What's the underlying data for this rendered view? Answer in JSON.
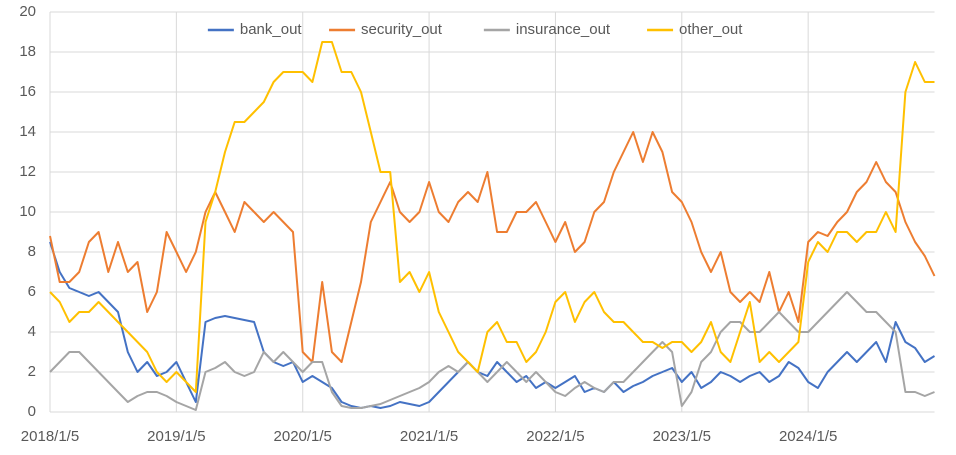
{
  "chart_data": {
    "type": "line",
    "categories": [
      "2018/1/5",
      null,
      null,
      null,
      null,
      null,
      null,
      null,
      null,
      null,
      null,
      null,
      null,
      "2019/1/5",
      null,
      null,
      null,
      null,
      null,
      null,
      null,
      null,
      null,
      null,
      null,
      null,
      "2020/1/5",
      null,
      null,
      null,
      null,
      null,
      null,
      null,
      null,
      null,
      null,
      null,
      null,
      "2021/1/5",
      null,
      null,
      null,
      null,
      null,
      null,
      null,
      null,
      null,
      null,
      null,
      null,
      "2022/1/5",
      null,
      null,
      null,
      null,
      null,
      null,
      null,
      null,
      null,
      null,
      null,
      null,
      "2023/1/5",
      null,
      null,
      null,
      null,
      null,
      null,
      null,
      null,
      null,
      null,
      null,
      null,
      "2024/1/5",
      null,
      null,
      null,
      null,
      null,
      null,
      null,
      null,
      null,
      null,
      null,
      null,
      null
    ],
    "series": [
      {
        "name": "bank_out",
        "color": "#4472c4",
        "values": [
          8.5,
          7,
          6.2,
          6,
          5.8,
          6,
          5.5,
          5,
          3,
          2,
          2.5,
          1.8,
          2,
          2.5,
          1.5,
          0.5,
          4.5,
          4.7,
          4.8,
          4.7,
          4.6,
          4.5,
          3,
          2.5,
          2.3,
          2.5,
          1.5,
          1.8,
          1.5,
          1.2,
          0.5,
          0.3,
          0.2,
          0.3,
          0.2,
          0.3,
          0.5,
          0.4,
          0.3,
          0.5,
          1,
          1.5,
          2,
          2.5,
          2,
          1.8,
          2.5,
          2,
          1.5,
          1.8,
          1.2,
          1.5,
          1.2,
          1.5,
          1.8,
          1,
          1.2,
          1,
          1.5,
          1,
          1.3,
          1.5,
          1.8,
          2,
          2.2,
          1.5,
          2,
          1.2,
          1.5,
          2,
          1.8,
          1.5,
          1.8,
          2,
          1.5,
          1.8,
          2.5,
          2.2,
          1.5,
          1.2,
          2,
          2.5,
          3,
          2.5,
          3,
          3.5,
          2.5,
          4.5,
          3.5,
          3.2,
          2.5,
          2.8
        ]
      },
      {
        "name": "security_out",
        "color": "#ed7d31",
        "values": [
          8.8,
          6.5,
          6.5,
          7,
          8.5,
          9,
          7,
          8.5,
          7,
          7.5,
          5,
          6,
          9,
          8,
          7,
          8,
          10,
          11,
          10,
          9,
          10.5,
          10,
          9.5,
          10,
          9.5,
          9,
          3,
          2.5,
          6.5,
          3,
          2.5,
          4.5,
          6.5,
          9.5,
          10.5,
          11.5,
          10,
          9.5,
          10,
          11.5,
          10,
          9.5,
          10.5,
          11,
          10.5,
          12,
          9,
          9,
          10,
          10,
          10.5,
          9.5,
          8.5,
          9.5,
          8,
          8.5,
          10,
          10.5,
          12,
          13,
          14,
          12.5,
          14,
          13,
          11,
          10.5,
          9.5,
          8,
          7,
          8,
          6,
          5.5,
          6,
          5.5,
          7,
          5,
          6,
          4.5,
          8.5,
          9,
          8.8,
          9.5,
          10,
          11,
          11.5,
          12.5,
          11.5,
          11,
          9.5,
          8.5,
          7.8,
          6.8
        ]
      },
      {
        "name": "insurance_out",
        "color": "#a5a5a5",
        "values": [
          2,
          2.5,
          3,
          3,
          2.5,
          2,
          1.5,
          1,
          0.5,
          0.8,
          1,
          1,
          0.8,
          0.5,
          0.3,
          0.1,
          2,
          2.2,
          2.5,
          2,
          1.8,
          2,
          3,
          2.5,
          3,
          2.5,
          2,
          2.5,
          2.5,
          1,
          0.3,
          0.2,
          0.2,
          0.3,
          0.4,
          0.6,
          0.8,
          1,
          1.2,
          1.5,
          2,
          2.3,
          2,
          2.5,
          2,
          1.5,
          2,
          2.5,
          2,
          1.5,
          2,
          1.5,
          1,
          0.8,
          1.2,
          1.5,
          1.2,
          1,
          1.5,
          1.5,
          2,
          2.5,
          3,
          3.5,
          3,
          0.3,
          1,
          2.5,
          3,
          4,
          4.5,
          4.5,
          4,
          4,
          4.5,
          5,
          4.5,
          4,
          4,
          4.5,
          5,
          5.5,
          6,
          5.5,
          5,
          5,
          4.5,
          4,
          1,
          1,
          0.8,
          1
        ]
      },
      {
        "name": "other_out",
        "color": "#ffc000",
        "values": [
          6,
          5.5,
          4.5,
          5,
          5,
          5.5,
          5,
          4.5,
          4,
          3.5,
          3,
          2,
          1.5,
          2,
          1.5,
          1,
          9.5,
          11,
          13,
          14.5,
          14.5,
          15,
          15.5,
          16.5,
          17,
          17,
          17,
          16.5,
          18.5,
          18.5,
          17,
          17,
          16,
          14,
          12,
          12,
          6.5,
          7,
          6,
          7,
          5,
          4,
          3,
          2.5,
          2,
          4,
          4.5,
          3.5,
          3.5,
          2.5,
          3,
          4,
          5.5,
          6,
          4.5,
          5.5,
          6,
          5,
          4.5,
          4.5,
          4,
          3.5,
          3.5,
          3.2,
          3.5,
          3.5,
          3,
          3.5,
          4.5,
          3,
          2.5,
          4,
          5.5,
          2.5,
          3,
          2.5,
          3,
          3.5,
          7.5,
          8.5,
          8,
          9,
          9,
          8.5,
          9,
          9,
          10,
          9,
          16,
          17.5,
          16.5,
          16.5
        ]
      }
    ],
    "ylim": [
      0,
      20
    ],
    "yticks": [
      0,
      2,
      4,
      6,
      8,
      10,
      12,
      14,
      16,
      18,
      20
    ],
    "grid": true,
    "legend": "top"
  }
}
